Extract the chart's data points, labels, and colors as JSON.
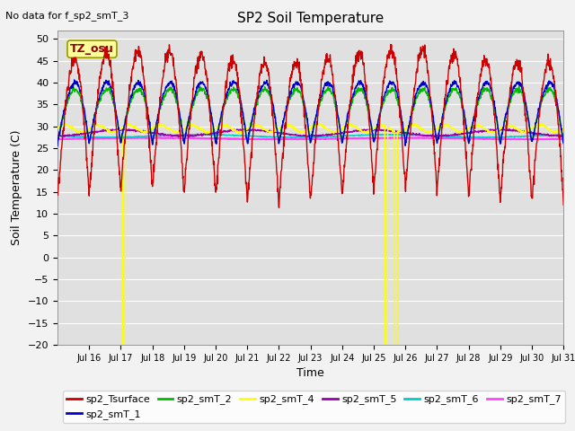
{
  "title": "SP2 Soil Temperature",
  "subtitle": "No data for f_sp2_smT_3",
  "ylabel": "Soil Temperature (C)",
  "xlabel": "Time",
  "tz_label": "TZ_osu",
  "ylim": [
    -20,
    52
  ],
  "yticks": [
    -20,
    -15,
    -10,
    -5,
    0,
    5,
    10,
    15,
    20,
    25,
    30,
    35,
    40,
    45,
    50
  ],
  "xstart": 15.0,
  "xend": 31.0,
  "legend": [
    {
      "label": "sp2_Tsurface",
      "color": "#cc0000"
    },
    {
      "label": "sp2_smT_1",
      "color": "#0000cc"
    },
    {
      "label": "sp2_smT_2",
      "color": "#00bb00"
    },
    {
      "label": "sp2_smT_4",
      "color": "#ffff00"
    },
    {
      "label": "sp2_smT_5",
      "color": "#9900aa"
    },
    {
      "label": "sp2_smT_6",
      "color": "#00cccc"
    },
    {
      "label": "sp2_smT_7",
      "color": "#ff44ff"
    }
  ],
  "bg_color": "#e0e0e0",
  "grid_color": "#ffffff",
  "fig_bg": "#f2f2f2",
  "annotation_box_color": "#ffff99",
  "annotation_box_edge": "#999900"
}
